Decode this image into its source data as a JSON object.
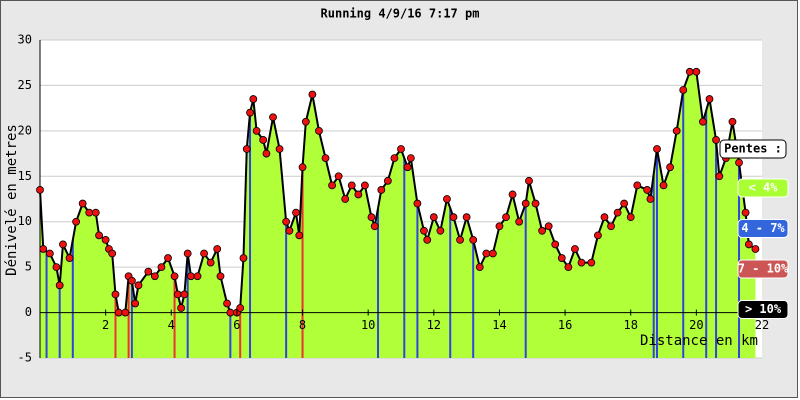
{
  "chart_data": {
    "type": "area",
    "title": "Running 4/9/16 7:17 pm",
    "x_label": "Distance en km",
    "y_label": "Dénivelé en metres",
    "x": [
      0,
      0.1,
      0.3,
      0.5,
      0.6,
      0.7,
      0.9,
      1.1,
      1.3,
      1.5,
      1.7,
      1.8,
      2.0,
      2.1,
      2.2,
      2.3,
      2.4,
      2.6,
      2.7,
      2.8,
      2.9,
      3.0,
      3.3,
      3.5,
      3.7,
      3.9,
      4.1,
      4.2,
      4.3,
      4.4,
      4.5,
      4.6,
      4.8,
      5.0,
      5.2,
      5.4,
      5.5,
      5.7,
      5.8,
      6.0,
      6.1,
      6.2,
      6.3,
      6.4,
      6.5,
      6.6,
      6.8,
      6.9,
      7.1,
      7.3,
      7.5,
      7.6,
      7.8,
      7.9,
      8.0,
      8.1,
      8.3,
      8.5,
      8.7,
      8.9,
      9.1,
      9.3,
      9.5,
      9.7,
      9.9,
      10.1,
      10.2,
      10.4,
      10.6,
      10.8,
      11.0,
      11.2,
      11.3,
      11.5,
      11.7,
      11.8,
      12.0,
      12.2,
      12.4,
      12.6,
      12.8,
      13.0,
      13.2,
      13.4,
      13.6,
      13.8,
      14.0,
      14.2,
      14.4,
      14.6,
      14.8,
      14.9,
      15.1,
      15.3,
      15.5,
      15.7,
      15.9,
      16.1,
      16.3,
      16.5,
      16.8,
      17.0,
      17.2,
      17.4,
      17.6,
      17.8,
      18.0,
      18.2,
      18.5,
      18.6,
      18.8,
      19.0,
      19.2,
      19.4,
      19.6,
      19.8,
      20.0,
      20.2,
      20.4,
      20.6,
      20.7,
      20.9,
      21.1,
      21.3,
      21.5,
      21.6,
      21.8
    ],
    "values": [
      13.5,
      7,
      6.5,
      5,
      3,
      7.5,
      6,
      10,
      12,
      11,
      11,
      8.5,
      8,
      7,
      6.5,
      2,
      0,
      0,
      4,
      3.5,
      1,
      3,
      4.5,
      4,
      5,
      6,
      4,
      2,
      0.5,
      2,
      6.5,
      4,
      4,
      6.5,
      5.5,
      7,
      4,
      1,
      0,
      0,
      0.5,
      6,
      18,
      22,
      23.5,
      20,
      19,
      17.5,
      21.5,
      18,
      10,
      9,
      11,
      8.5,
      16,
      21,
      24,
      20,
      17,
      14,
      15,
      12.5,
      14,
      13,
      14,
      10.5,
      9.5,
      13.5,
      14.5,
      17,
      18,
      16,
      17,
      12,
      9,
      8,
      10.5,
      9,
      12.5,
      10.5,
      8,
      10.5,
      8,
      5,
      6.5,
      6.5,
      9.5,
      10.5,
      13,
      10,
      12,
      14.5,
      12,
      9,
      9.5,
      7.5,
      6,
      5,
      7,
      5.5,
      5.5,
      8.5,
      10.5,
      9.5,
      11,
      12,
      10.5,
      14,
      13.5,
      12.5,
      18,
      14,
      16,
      20,
      24.5,
      26.5,
      26.5,
      21,
      23.5,
      19,
      15,
      17,
      21,
      16.5,
      11,
      7.5,
      7
    ],
    "line_color": "#000000",
    "marker_color": "#ee1111",
    "fill_color": "#b0ff38",
    "slope_lines": {
      "x": [
        0.2,
        0.6,
        1.0,
        2.3,
        2.7,
        2.8,
        4.1,
        4.5,
        5.8,
        6.1,
        6.4,
        7.5,
        8.0,
        10.3,
        11.1,
        11.5,
        12.5,
        13.2,
        14.8,
        18.7,
        18.8,
        19.6,
        20.3,
        20.6,
        21.3
      ],
      "colors": [
        "#3344dd",
        "#3344dd",
        "#3344dd",
        "#ee3333",
        "#ee3333",
        "#3344dd",
        "#ee3333",
        "#3344dd",
        "#3344dd",
        "#ee3333",
        "#3344dd",
        "#3344dd",
        "#ee3333",
        "#3344dd",
        "#3344dd",
        "#3344dd",
        "#3344dd",
        "#3344dd",
        "#3344dd",
        "#3344dd",
        "#3344dd",
        "#3344dd",
        "#3344dd",
        "#3344dd",
        "#3344dd"
      ]
    },
    "legend_title": "Pentes :",
    "legend": [
      {
        "name": "< 4%",
        "color": "#aaff33"
      },
      {
        "name": "4 - 7%",
        "color": "#3366dd"
      },
      {
        "name": "7 - 10%",
        "color": "#cc5555"
      },
      {
        "name": "> 10%",
        "color": "#000000"
      }
    ],
    "xlim": [
      0,
      22
    ],
    "xticks": [
      2,
      4,
      6,
      8,
      10,
      12,
      14,
      16,
      18,
      20,
      22
    ],
    "ylim": [
      -5,
      30
    ],
    "yticks": [
      -5,
      0,
      5,
      10,
      15,
      20,
      25,
      30
    ],
    "grid": true
  }
}
